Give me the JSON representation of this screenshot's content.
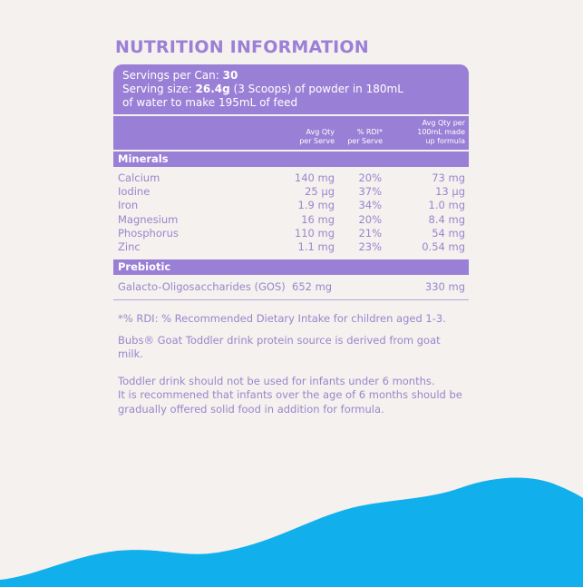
{
  "title": "NUTRITION INFORMATION",
  "serving": {
    "line1_label": "Servings per Can: ",
    "line1_value": "30",
    "line2_label": "Serving size: ",
    "line2_value": "26.4g",
    "line2_rest": " (3 Scoops) of powder in 180mL",
    "line3": "of water to make 195mL of feed"
  },
  "columns": {
    "qty_line1": "Avg Qty",
    "qty_line2": "per Serve",
    "rdi_line1": "% RDI*",
    "rdi_line2": "per Serve",
    "formula_line1": "Avg Qty per",
    "formula_line2": "100mL made",
    "formula_line3": "up formula"
  },
  "minerals": {
    "heading": "Minerals",
    "rows": [
      {
        "name": "Calcium",
        "qty": "140 mg",
        "rdi": "20%",
        "formula": "73 mg"
      },
      {
        "name": "Iodine",
        "qty": "25 µg",
        "rdi": "37%",
        "formula": "13 µg"
      },
      {
        "name": "Iron",
        "qty": "1.9 mg",
        "rdi": "34%",
        "formula": "1.0 mg"
      },
      {
        "name": "Magnesium",
        "qty": "16 mg",
        "rdi": "20%",
        "formula": "8.4 mg"
      },
      {
        "name": "Phosphorus",
        "qty": "110 mg",
        "rdi": "21%",
        "formula": "54 mg"
      },
      {
        "name": "Zinc",
        "qty": "1.1 mg",
        "rdi": "23%",
        "formula": "0.54 mg"
      }
    ]
  },
  "prebiotic": {
    "heading": "Prebiotic",
    "rows": [
      {
        "name": "Galacto-Oligosaccharides (GOS)",
        "qty": "652 mg",
        "rdi": "",
        "formula": "330 mg"
      }
    ]
  },
  "notes": {
    "rdi": "*% RDI: % Recommended Dietary Intake for children aged 1-3.",
    "protein": "Bubs® Goat Toddler drink protein source is derived from goat milk.",
    "warning1": "Toddler drink should not be used for infants under 6 months.",
    "warning2": "It is recommened that infants over the age of 6 months should be",
    "warning3": "gradually offered solid food in addition for formula."
  },
  "colors": {
    "purple": "#9a7fd6",
    "text": "#9a86cc",
    "wave": "#11b0ec",
    "background": "#f4f1ee"
  }
}
